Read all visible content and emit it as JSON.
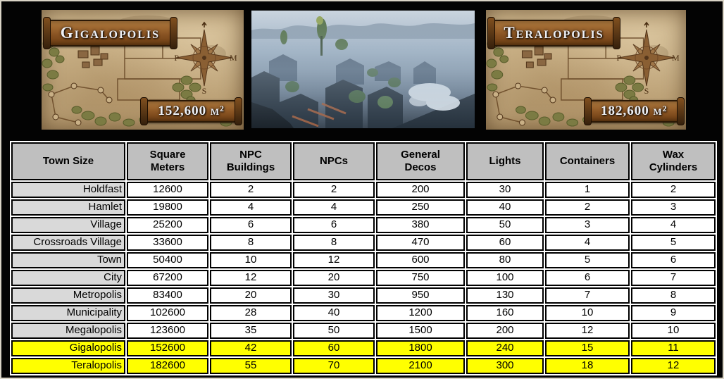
{
  "maps": [
    {
      "title": "Gigalopolis",
      "area": "152,600 m²",
      "compass": {
        "west": "P",
        "east": "M",
        "south": "S"
      }
    },
    {
      "title": "Teralopolis",
      "area": "182,600 m²",
      "compass": {
        "west": "P",
        "east": "M",
        "south": "S"
      }
    }
  ],
  "chart_data": {
    "type": "table",
    "columns": [
      "Town Size",
      "Square Meters",
      "NPC Buildings",
      "NPCs",
      "General Decos",
      "Lights",
      "Containers",
      "Wax Cylinders"
    ],
    "rows": [
      {
        "label": "Holdfast",
        "values": [
          12600,
          2,
          2,
          200,
          30,
          1,
          2
        ],
        "highlight": false
      },
      {
        "label": "Hamlet",
        "values": [
          19800,
          4,
          4,
          250,
          40,
          2,
          3
        ],
        "highlight": false
      },
      {
        "label": "Village",
        "values": [
          25200,
          6,
          6,
          380,
          50,
          3,
          4
        ],
        "highlight": false
      },
      {
        "label": "Crossroads Village",
        "values": [
          33600,
          8,
          8,
          470,
          60,
          4,
          5
        ],
        "highlight": false
      },
      {
        "label": "Town",
        "values": [
          50400,
          10,
          12,
          600,
          80,
          5,
          6
        ],
        "highlight": false
      },
      {
        "label": "City",
        "values": [
          67200,
          12,
          20,
          750,
          100,
          6,
          7
        ],
        "highlight": false
      },
      {
        "label": "Metropolis",
        "values": [
          83400,
          20,
          30,
          950,
          130,
          7,
          8
        ],
        "highlight": false
      },
      {
        "label": "Municipality",
        "values": [
          102600,
          28,
          40,
          1200,
          160,
          10,
          9
        ],
        "highlight": false
      },
      {
        "label": "Megalopolis",
        "values": [
          123600,
          35,
          50,
          1500,
          200,
          12,
          10
        ],
        "highlight": false
      },
      {
        "label": "Gigalopolis",
        "values": [
          152600,
          42,
          60,
          1800,
          240,
          15,
          11
        ],
        "highlight": true
      },
      {
        "label": "Teralopolis",
        "values": [
          182600,
          55,
          70,
          2100,
          300,
          18,
          12
        ],
        "highlight": true
      }
    ]
  },
  "colors": {
    "highlight": "#ffff00",
    "header_bg": "#bfbfbf",
    "label_bg": "#d9d9d9",
    "table_border": "#000000"
  }
}
